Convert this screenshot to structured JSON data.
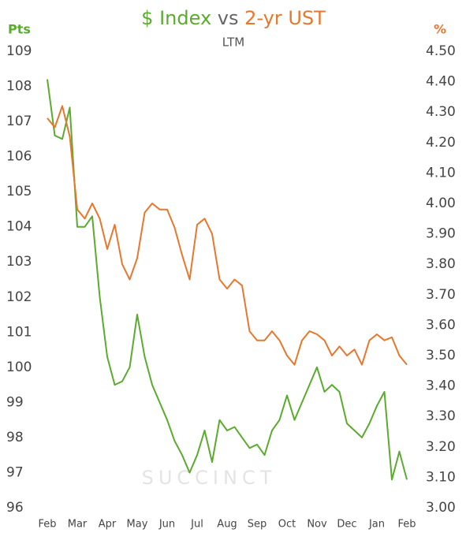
{
  "chart_data": {
    "type": "line",
    "title_parts": [
      "$ Index",
      "vs",
      "2-yr UST"
    ],
    "subtitle": "LTM",
    "y_label": "Pts",
    "y2_label": "%",
    "watermark": "SUCCINCT",
    "xlim": [
      0,
      12
    ],
    "xticks": [
      {
        "value": 0,
        "label": "Feb"
      },
      {
        "value": 1,
        "label": "Mar"
      },
      {
        "value": 2,
        "label": "Apr"
      },
      {
        "value": 3,
        "label": "May"
      },
      {
        "value": 4,
        "label": "Jun"
      },
      {
        "value": 5,
        "label": "Jul"
      },
      {
        "value": 6,
        "label": "Aug"
      },
      {
        "value": 7,
        "label": "Sep"
      },
      {
        "value": 8,
        "label": "Oct"
      },
      {
        "value": 9,
        "label": "Nov"
      },
      {
        "value": 10,
        "label": "Dec"
      },
      {
        "value": 11,
        "label": "Jan"
      },
      {
        "value": 12,
        "label": "Feb"
      }
    ],
    "ylim": [
      96,
      109
    ],
    "yticks": [
      96,
      97,
      98,
      99,
      100,
      101,
      102,
      103,
      104,
      105,
      106,
      107,
      108,
      109
    ],
    "y2lim": [
      3.0,
      4.5
    ],
    "y2ticks": [
      {
        "value": 3.0,
        "label": "3.00"
      },
      {
        "value": 3.1,
        "label": "3.10"
      },
      {
        "value": 3.2,
        "label": "3.20"
      },
      {
        "value": 3.3,
        "label": "3.30"
      },
      {
        "value": 3.4,
        "label": "3.40"
      },
      {
        "value": 3.5,
        "label": "3.50"
      },
      {
        "value": 3.6,
        "label": "3.60"
      },
      {
        "value": 3.7,
        "label": "3.70"
      },
      {
        "value": 3.8,
        "label": "3.80"
      },
      {
        "value": 3.9,
        "label": "3.90"
      },
      {
        "value": 4.0,
        "label": "4.00"
      },
      {
        "value": 4.1,
        "label": "4.10"
      },
      {
        "value": 4.2,
        "label": "4.20"
      },
      {
        "value": 4.3,
        "label": "4.30"
      },
      {
        "value": 4.4,
        "label": "4.40"
      },
      {
        "value": 4.5,
        "label": "4.50"
      }
    ],
    "x": [
      0,
      0.25,
      0.5,
      0.75,
      1,
      1.25,
      1.5,
      1.75,
      2,
      2.25,
      2.5,
      2.75,
      3,
      3.25,
      3.5,
      3.75,
      4,
      4.25,
      4.5,
      4.75,
      5,
      5.25,
      5.5,
      5.75,
      6,
      6.25,
      6.5,
      6.75,
      7,
      7.25,
      7.5,
      7.75,
      8,
      8.25,
      8.5,
      8.75,
      9,
      9.25,
      9.5,
      9.75,
      10,
      10.25,
      10.5,
      10.75,
      11,
      11.25,
      11.5,
      11.75,
      12
    ],
    "series": [
      {
        "name": "$ Index",
        "color": "#5aab2e",
        "axis": "y",
        "values": [
          108.2,
          106.6,
          106.5,
          107.4,
          104.0,
          104.0,
          104.3,
          102.0,
          100.3,
          99.5,
          99.6,
          100.0,
          101.5,
          100.3,
          99.5,
          99.0,
          98.5,
          97.9,
          97.5,
          97.0,
          97.5,
          98.2,
          97.3,
          98.5,
          98.2,
          98.3,
          98.0,
          97.7,
          97.8,
          97.5,
          98.2,
          98.5,
          99.2,
          98.5,
          99.0,
          99.5,
          100.0,
          99.3,
          99.5,
          99.3,
          98.4,
          98.2,
          98.0,
          98.4,
          98.9,
          99.3,
          96.8,
          97.6,
          96.8
        ]
      },
      {
        "name": "2-yr UST",
        "color": "#e8772e",
        "axis": "y2",
        "values": [
          4.28,
          4.25,
          4.32,
          4.22,
          3.98,
          3.95,
          4.0,
          3.95,
          3.85,
          3.93,
          3.8,
          3.75,
          3.82,
          3.97,
          4.0,
          3.98,
          3.98,
          3.92,
          3.83,
          3.75,
          3.93,
          3.95,
          3.9,
          3.75,
          3.72,
          3.75,
          3.73,
          3.58,
          3.55,
          3.55,
          3.58,
          3.55,
          3.5,
          3.47,
          3.55,
          3.58,
          3.57,
          3.55,
          3.5,
          3.53,
          3.5,
          3.52,
          3.47,
          3.55,
          3.57,
          3.55,
          3.56,
          3.5,
          3.47
        ]
      }
    ]
  }
}
